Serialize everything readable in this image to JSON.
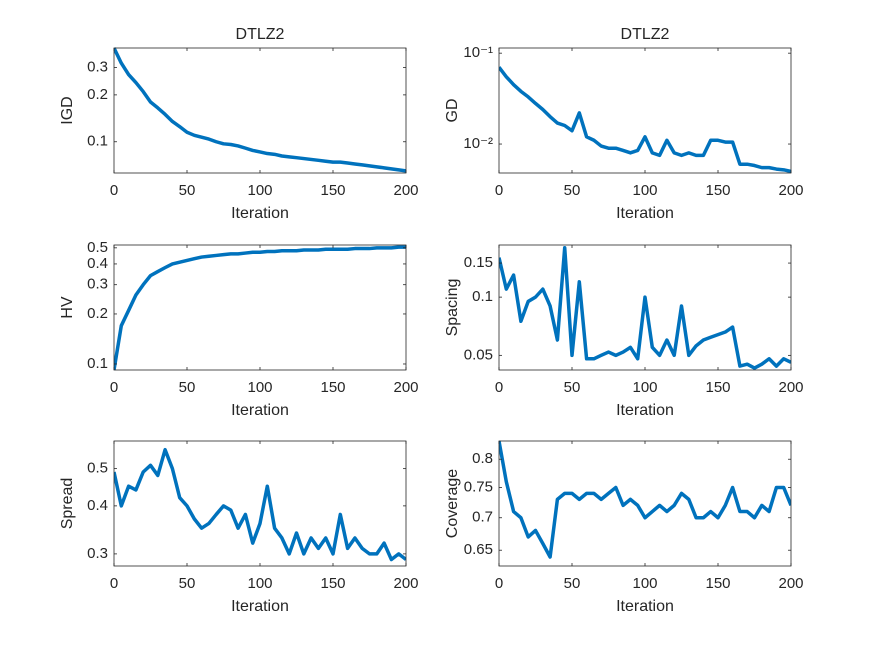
{
  "chart_data": [
    {
      "type": "line",
      "title": "DTLZ2",
      "xlabel": "Iteration",
      "ylabel": "IGD",
      "log_y": true,
      "color": "#0072bd",
      "x": [
        0,
        5,
        10,
        15,
        20,
        25,
        30,
        35,
        40,
        45,
        50,
        55,
        60,
        65,
        70,
        75,
        80,
        85,
        90,
        95,
        100,
        105,
        110,
        115,
        120,
        125,
        130,
        135,
        140,
        145,
        150,
        155,
        160,
        165,
        170,
        175,
        180,
        185,
        190,
        195,
        200
      ],
      "values": [
        0.4,
        0.32,
        0.27,
        0.24,
        0.21,
        0.18,
        0.165,
        0.15,
        0.135,
        0.125,
        0.115,
        0.11,
        0.107,
        0.104,
        0.1,
        0.097,
        0.096,
        0.094,
        0.091,
        0.088,
        0.086,
        0.084,
        0.083,
        0.081,
        0.08,
        0.079,
        0.078,
        0.077,
        0.076,
        0.075,
        0.074,
        0.074,
        0.073,
        0.072,
        0.071,
        0.07,
        0.069,
        0.068,
        0.067,
        0.066,
        0.065
      ],
      "xlim": [
        0,
        200
      ],
      "xticks": [
        0,
        50,
        100,
        150,
        200
      ],
      "ylim": [
        0.063,
        0.4
      ],
      "yticks": [
        0.1,
        0.2,
        0.3
      ]
    },
    {
      "type": "line",
      "title": "DTLZ2",
      "xlabel": "Iteration",
      "ylabel": "GD",
      "log_y": true,
      "color": "#0072bd",
      "x": [
        0,
        5,
        10,
        15,
        20,
        25,
        30,
        35,
        40,
        45,
        50,
        55,
        60,
        65,
        70,
        75,
        80,
        85,
        90,
        95,
        100,
        105,
        110,
        115,
        120,
        125,
        130,
        135,
        140,
        145,
        150,
        155,
        160,
        165,
        170,
        175,
        180,
        185,
        190,
        195,
        200
      ],
      "values": [
        0.07,
        0.055,
        0.045,
        0.038,
        0.033,
        0.028,
        0.024,
        0.02,
        0.017,
        0.016,
        0.014,
        0.022,
        0.012,
        0.011,
        0.0095,
        0.009,
        0.009,
        0.0085,
        0.008,
        0.0085,
        0.012,
        0.008,
        0.0075,
        0.011,
        0.008,
        0.0075,
        0.008,
        0.0075,
        0.0075,
        0.011,
        0.011,
        0.0105,
        0.0105,
        0.006,
        0.006,
        0.0058,
        0.0055,
        0.0055,
        0.0053,
        0.0052,
        0.005
      ],
      "xlim": [
        0,
        200
      ],
      "xticks": [
        0,
        50,
        100,
        150,
        200
      ],
      "ylim": [
        0.0048,
        0.114
      ],
      "yticks": [
        {
          "value": 0.01,
          "label": "10⁻²"
        },
        {
          "value": 0.1,
          "label": "10⁻¹"
        }
      ]
    },
    {
      "type": "line",
      "xlabel": "Iteration",
      "ylabel": "HV",
      "log_y": true,
      "color": "#0072bd",
      "x": [
        0,
        5,
        10,
        15,
        20,
        25,
        30,
        35,
        40,
        45,
        50,
        55,
        60,
        65,
        70,
        75,
        80,
        85,
        90,
        95,
        100,
        105,
        110,
        115,
        120,
        125,
        130,
        135,
        140,
        145,
        150,
        155,
        160,
        165,
        170,
        175,
        180,
        185,
        190,
        195,
        200
      ],
      "values": [
        0.092,
        0.17,
        0.21,
        0.26,
        0.3,
        0.34,
        0.36,
        0.38,
        0.4,
        0.41,
        0.42,
        0.43,
        0.44,
        0.445,
        0.45,
        0.455,
        0.46,
        0.46,
        0.465,
        0.47,
        0.47,
        0.475,
        0.475,
        0.48,
        0.48,
        0.48,
        0.485,
        0.485,
        0.485,
        0.49,
        0.49,
        0.49,
        0.49,
        0.495,
        0.495,
        0.495,
        0.5,
        0.5,
        0.5,
        0.505,
        0.505
      ],
      "xlim": [
        0,
        200
      ],
      "xticks": [
        0,
        50,
        100,
        150,
        200
      ],
      "ylim": [
        0.092,
        0.52
      ],
      "yticks": [
        0.1,
        0.2,
        0.3,
        0.4,
        0.5
      ]
    },
    {
      "type": "line",
      "xlabel": "Iteration",
      "ylabel": "Spacing",
      "log_y": true,
      "color": "#0072bd",
      "x": [
        0,
        5,
        10,
        15,
        20,
        25,
        30,
        35,
        40,
        45,
        50,
        55,
        60,
        65,
        70,
        75,
        80,
        85,
        90,
        95,
        100,
        105,
        110,
        115,
        120,
        125,
        130,
        135,
        140,
        145,
        150,
        155,
        160,
        165,
        170,
        175,
        180,
        185,
        190,
        195,
        200
      ],
      "values": [
        0.16,
        0.11,
        0.13,
        0.075,
        0.095,
        0.1,
        0.11,
        0.09,
        0.06,
        0.18,
        0.05,
        0.12,
        0.048,
        0.048,
        0.05,
        0.052,
        0.05,
        0.052,
        0.055,
        0.048,
        0.1,
        0.055,
        0.05,
        0.06,
        0.05,
        0.09,
        0.05,
        0.056,
        0.06,
        0.062,
        0.064,
        0.066,
        0.07,
        0.044,
        0.045,
        0.043,
        0.045,
        0.048,
        0.044,
        0.048,
        0.046
      ],
      "xlim": [
        0,
        200
      ],
      "xticks": [
        0,
        50,
        100,
        150,
        200
      ],
      "ylim": [
        0.042,
        0.186
      ],
      "yticks": [
        0.05,
        0.1,
        0.15
      ]
    },
    {
      "type": "line",
      "xlabel": "Iteration",
      "ylabel": "Spread",
      "log_y": true,
      "color": "#0072bd",
      "x": [
        0,
        5,
        10,
        15,
        20,
        25,
        30,
        35,
        40,
        45,
        50,
        55,
        60,
        65,
        70,
        75,
        80,
        85,
        90,
        95,
        100,
        105,
        110,
        115,
        120,
        125,
        130,
        135,
        140,
        145,
        150,
        155,
        160,
        165,
        170,
        175,
        180,
        185,
        190,
        195,
        200
      ],
      "values": [
        0.49,
        0.4,
        0.45,
        0.44,
        0.49,
        0.51,
        0.48,
        0.56,
        0.5,
        0.42,
        0.4,
        0.37,
        0.35,
        0.36,
        0.38,
        0.4,
        0.39,
        0.35,
        0.38,
        0.32,
        0.36,
        0.45,
        0.35,
        0.33,
        0.3,
        0.34,
        0.3,
        0.33,
        0.31,
        0.33,
        0.3,
        0.38,
        0.31,
        0.33,
        0.31,
        0.3,
        0.3,
        0.32,
        0.29,
        0.3,
        0.29
      ],
      "xlim": [
        0,
        200
      ],
      "xticks": [
        0,
        50,
        100,
        150,
        200
      ],
      "ylim": [
        0.279,
        0.59
      ],
      "yticks": [
        0.3,
        0.4,
        0.5
      ]
    },
    {
      "type": "line",
      "xlabel": "Iteration",
      "ylabel": "Coverage",
      "log_y": true,
      "color": "#0072bd",
      "x": [
        0,
        5,
        10,
        15,
        20,
        25,
        30,
        35,
        40,
        45,
        50,
        55,
        60,
        65,
        70,
        75,
        80,
        85,
        90,
        95,
        100,
        105,
        110,
        115,
        120,
        125,
        130,
        135,
        140,
        145,
        150,
        155,
        160,
        165,
        170,
        175,
        180,
        185,
        190,
        195,
        200
      ],
      "values": [
        0.834,
        0.76,
        0.71,
        0.7,
        0.67,
        0.68,
        0.66,
        0.64,
        0.73,
        0.74,
        0.74,
        0.73,
        0.74,
        0.74,
        0.73,
        0.74,
        0.75,
        0.72,
        0.73,
        0.72,
        0.7,
        0.71,
        0.72,
        0.71,
        0.72,
        0.74,
        0.73,
        0.7,
        0.7,
        0.71,
        0.7,
        0.72,
        0.75,
        0.71,
        0.71,
        0.7,
        0.72,
        0.71,
        0.75,
        0.75,
        0.72
      ],
      "xlim": [
        0,
        200
      ],
      "xticks": [
        0,
        50,
        100,
        150,
        200
      ],
      "ylim": [
        0.627,
        0.834
      ],
      "yticks": [
        0.65,
        0.7,
        0.75,
        0.8
      ]
    }
  ]
}
